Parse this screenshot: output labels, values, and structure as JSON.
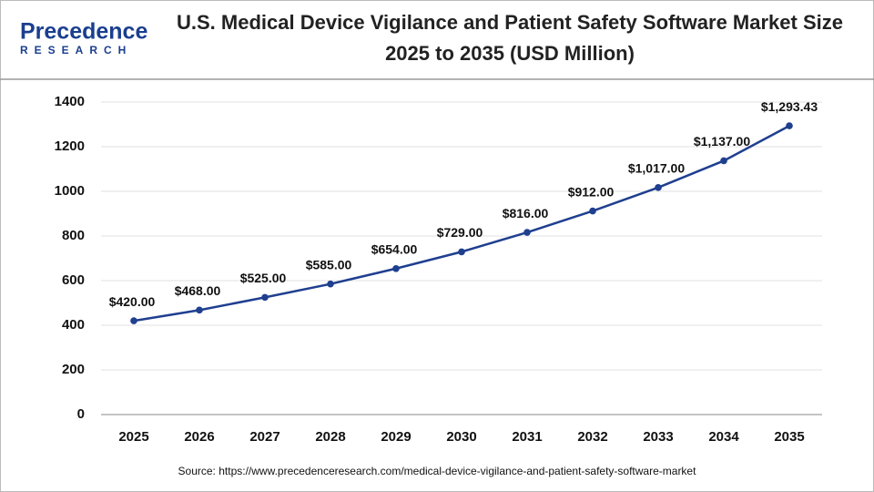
{
  "logo": {
    "name": "Precedence",
    "tagline": "RESEARCH"
  },
  "chart_data": {
    "type": "line",
    "title": "U.S. Medical Device Vigilance and Patient Safety Software Market Size 2025 to 2035 (USD Million)",
    "categories": [
      "2025",
      "2026",
      "2027",
      "2028",
      "2029",
      "2030",
      "2031",
      "2032",
      "2033",
      "2034",
      "2035"
    ],
    "values": [
      420,
      468,
      525,
      585,
      654,
      729,
      816,
      912,
      1017,
      1137,
      1293.43
    ],
    "value_labels": [
      "$420.00",
      "$468.00",
      "$525.00",
      "$585.00",
      "$654.00",
      "$729.00",
      "$816.00",
      "$912.00",
      "$1,017.00",
      "$1,137.00",
      "$1,293.43"
    ],
    "color": "#1f3f8f",
    "ylim": [
      0,
      1400
    ],
    "yticks": [
      0,
      200,
      400,
      600,
      800,
      1000,
      1200,
      1400
    ],
    "grid": true,
    "source": "Source: https://www.precedenceresearch.com/medical-device-vigilance-and-patient-safety-software-market"
  }
}
